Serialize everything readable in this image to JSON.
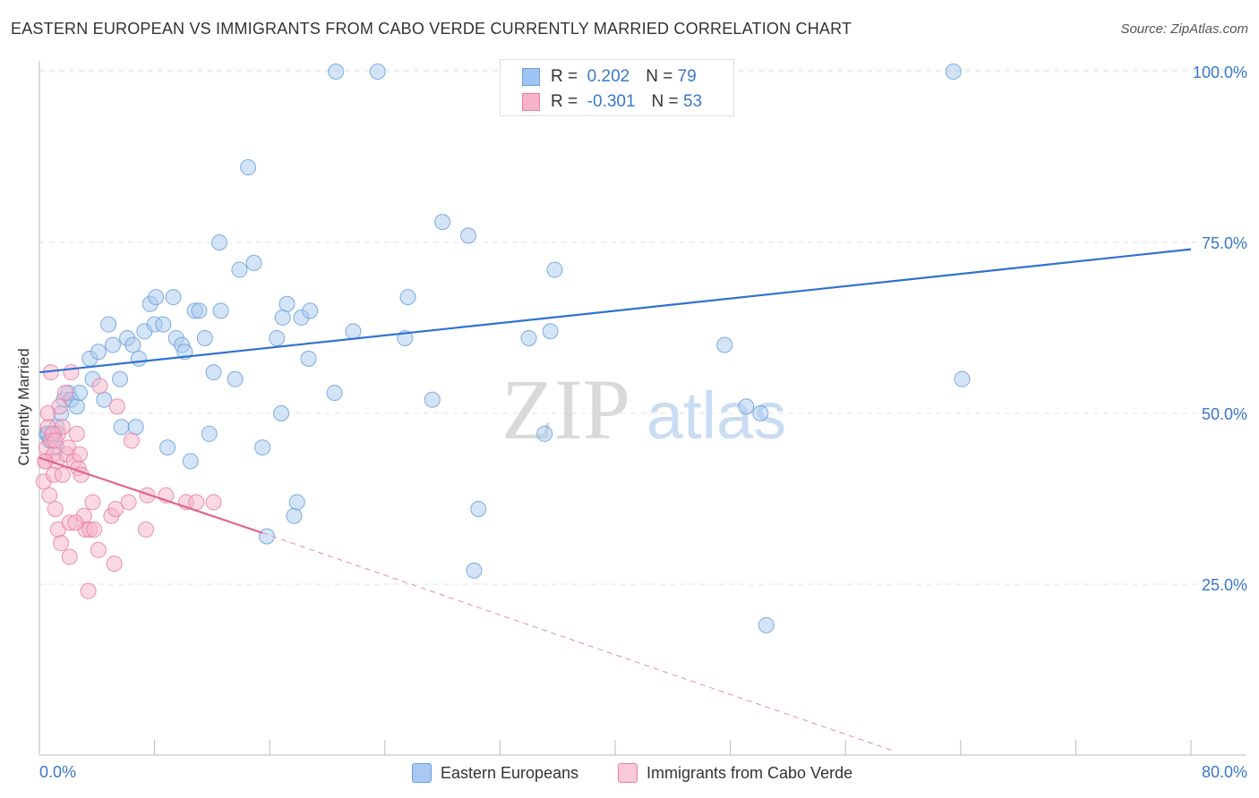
{
  "title": "EASTERN EUROPEAN VS IMMIGRANTS FROM CABO VERDE CURRENTLY MARRIED CORRELATION CHART",
  "source": "Source: ZipAtlas.com",
  "watermark": {
    "zip": "ZIP",
    "atlas": "atlas"
  },
  "legend_top": {
    "r_label": "R =",
    "n_label": "N =",
    "rows": [
      {
        "r": "0.202",
        "n": "79",
        "color": "#9ec4ef"
      },
      {
        "r": "-0.301",
        "n": "53",
        "color": "#f6b3c8"
      }
    ]
  },
  "chart_data": {
    "type": "scatter",
    "title": "EASTERN EUROPEAN VS IMMIGRANTS FROM CABO VERDE CURRENTLY MARRIED CORRELATION CHART",
    "xlabel": "",
    "ylabel": "Currently Married",
    "xlim": [
      0,
      80
    ],
    "ylim": [
      0,
      102
    ],
    "x_tick_labels": [
      "0.0%",
      "80.0%"
    ],
    "y_tick_labels": [
      "25.0%",
      "50.0%",
      "75.0%",
      "100.0%"
    ],
    "y_ticks": [
      25,
      50,
      75,
      100
    ],
    "grid": true,
    "series": [
      {
        "name": "Eastern Europeans",
        "color": "#6a9fdc",
        "fill": "#a9c9f0",
        "r": 0.202,
        "n": 79,
        "trend": {
          "x0": 0,
          "y0": 56,
          "x1": 80,
          "y1": 74
        },
        "points": [
          [
            0.5,
            47
          ],
          [
            0.8,
            46
          ],
          [
            1.2,
            48
          ],
          [
            1.5,
            50
          ],
          [
            1.7,
            52
          ],
          [
            2.0,
            53
          ],
          [
            2.2,
            52
          ],
          [
            2.6,
            51
          ],
          [
            2.8,
            53
          ],
          [
            3.5,
            58
          ],
          [
            3.7,
            55
          ],
          [
            4.1,
            59
          ],
          [
            4.5,
            52
          ],
          [
            4.8,
            63
          ],
          [
            5.1,
            60
          ],
          [
            5.6,
            55
          ],
          [
            5.7,
            48
          ],
          [
            6.1,
            61
          ],
          [
            6.5,
            60
          ],
          [
            6.7,
            48
          ],
          [
            6.9,
            58
          ],
          [
            7.3,
            62
          ],
          [
            7.7,
            66
          ],
          [
            8.0,
            63
          ],
          [
            8.1,
            67
          ],
          [
            8.6,
            63
          ],
          [
            8.9,
            45
          ],
          [
            9.3,
            67
          ],
          [
            9.5,
            61
          ],
          [
            9.9,
            60
          ],
          [
            10.1,
            59
          ],
          [
            10.5,
            43
          ],
          [
            10.8,
            65
          ],
          [
            11.1,
            65
          ],
          [
            11.5,
            61
          ],
          [
            11.8,
            47
          ],
          [
            12.1,
            56
          ],
          [
            12.6,
            65
          ],
          [
            12.5,
            75
          ],
          [
            13.6,
            55
          ],
          [
            13.9,
            71
          ],
          [
            14.5,
            86
          ],
          [
            14.9,
            72
          ],
          [
            15.5,
            45
          ],
          [
            15.8,
            32
          ],
          [
            16.5,
            61
          ],
          [
            16.8,
            50
          ],
          [
            16.9,
            64
          ],
          [
            17.2,
            66
          ],
          [
            17.7,
            35
          ],
          [
            17.9,
            37
          ],
          [
            18.2,
            64
          ],
          [
            18.7,
            58
          ],
          [
            18.8,
            65
          ],
          [
            20.5,
            53
          ],
          [
            20.6,
            100
          ],
          [
            21.8,
            62
          ],
          [
            23.5,
            100
          ],
          [
            25.4,
            61
          ],
          [
            25.6,
            67
          ],
          [
            27.3,
            52
          ],
          [
            28.0,
            78
          ],
          [
            29.8,
            76
          ],
          [
            30.5,
            36
          ],
          [
            30.2,
            27
          ],
          [
            34.0,
            61
          ],
          [
            35.1,
            47
          ],
          [
            35.5,
            62
          ],
          [
            35.8,
            71
          ],
          [
            47.6,
            60
          ],
          [
            49.1,
            51
          ],
          [
            50.1,
            50
          ],
          [
            50.5,
            19
          ],
          [
            63.5,
            100
          ],
          [
            64.1,
            55
          ],
          [
            0.6,
            47
          ],
          [
            1.0,
            47
          ],
          [
            0.7,
            46
          ],
          [
            1.2,
            45
          ]
        ]
      },
      {
        "name": "Immigrants from Cabo Verde",
        "color": "#e87fa6",
        "fill": "#f6b3c8",
        "r": -0.301,
        "n": 53,
        "trend": {
          "x0": 0,
          "y0": 43.5,
          "x1": 15.5,
          "y1": 32.5
        },
        "trend_dashed": {
          "x0": 15.5,
          "y0": 32.5,
          "x1": 59.5,
          "y1": 0.5
        },
        "points": [
          [
            0.3,
            40
          ],
          [
            0.4,
            43
          ],
          [
            0.5,
            45
          ],
          [
            0.6,
            48
          ],
          [
            0.6,
            50
          ],
          [
            0.7,
            38
          ],
          [
            0.8,
            56
          ],
          [
            0.9,
            46
          ],
          [
            1.0,
            44
          ],
          [
            1.0,
            41
          ],
          [
            1.1,
            36
          ],
          [
            1.2,
            43
          ],
          [
            1.3,
            47
          ],
          [
            1.3,
            33
          ],
          [
            1.4,
            51
          ],
          [
            1.5,
            31
          ],
          [
            1.6,
            41
          ],
          [
            1.6,
            48
          ],
          [
            1.8,
            53
          ],
          [
            1.9,
            44
          ],
          [
            2.0,
            45
          ],
          [
            2.1,
            29
          ],
          [
            2.1,
            34
          ],
          [
            2.2,
            56
          ],
          [
            2.4,
            43
          ],
          [
            2.6,
            47
          ],
          [
            2.7,
            42
          ],
          [
            2.8,
            44
          ],
          [
            2.9,
            41
          ],
          [
            3.1,
            35
          ],
          [
            3.2,
            33
          ],
          [
            3.4,
            24
          ],
          [
            3.5,
            33
          ],
          [
            3.7,
            37
          ],
          [
            3.8,
            33
          ],
          [
            4.1,
            30
          ],
          [
            4.2,
            54
          ],
          [
            5.0,
            35
          ],
          [
            5.2,
            28
          ],
          [
            5.3,
            36
          ],
          [
            5.4,
            51
          ],
          [
            6.2,
            37
          ],
          [
            6.4,
            46
          ],
          [
            7.4,
            33
          ],
          [
            7.5,
            38
          ],
          [
            8.8,
            38
          ],
          [
            10.2,
            37
          ],
          [
            10.9,
            37
          ],
          [
            12.1,
            37
          ],
          [
            0.4,
            43
          ],
          [
            0.9,
            47
          ],
          [
            1.1,
            46
          ],
          [
            2.5,
            34
          ]
        ]
      }
    ]
  },
  "bottom_legend": [
    {
      "label": "Eastern Europeans",
      "color": "#a9c9f0",
      "border": "#6a9fdc"
    },
    {
      "label": "Immigrants from Cabo Verde",
      "color": "#f9c9d8",
      "border": "#e87fa6"
    }
  ]
}
